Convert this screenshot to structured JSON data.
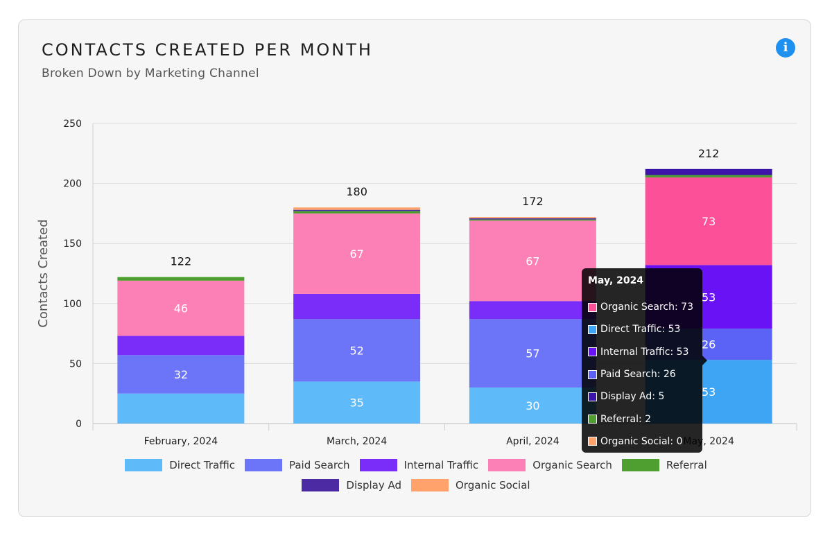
{
  "card": {
    "title": "CONTACTS CREATED PER MONTH",
    "subtitle": "Broken Down by Marketing Channel",
    "info_icon": "info-icon"
  },
  "chart_data": {
    "type": "bar",
    "stacked": true,
    "categories": [
      "February, 2024",
      "March, 2024",
      "April, 2024",
      "May, 2024"
    ],
    "series": [
      {
        "name": "Direct Traffic",
        "color": "#5ebaf9",
        "hover_color": "#3da5f4",
        "values": [
          25,
          35,
          30,
          53
        ]
      },
      {
        "name": "Paid Search",
        "color": "#6c75f7",
        "hover_color": "#5a63f5",
        "values": [
          32,
          52,
          57,
          26
        ]
      },
      {
        "name": "Internal Traffic",
        "color": "#7a2df9",
        "hover_color": "#6a12f6",
        "values": [
          16,
          21,
          15,
          53
        ]
      },
      {
        "name": "Organic Search",
        "color": "#fc80b6",
        "hover_color": "#fc5199",
        "values": [
          46,
          67,
          67,
          73
        ]
      },
      {
        "name": "Referral",
        "color": "#4f9f30",
        "hover_color": "#4f9f30",
        "values": [
          3,
          2,
          1,
          2
        ]
      },
      {
        "name": "Display Ad",
        "color": "#4b2aa3",
        "hover_color": "#3c14a8",
        "values": [
          0,
          1,
          1,
          5
        ]
      },
      {
        "name": "Organic Social",
        "color": "#ffa26b",
        "hover_color": "#ffa26b",
        "values": [
          0,
          2,
          1,
          0
        ]
      }
    ],
    "segment_labels_for": [
      "Direct Traffic",
      "Paid Search",
      "Organic Search",
      "Internal Traffic"
    ],
    "labelled_segments": [
      [
        "",
        "32",
        "",
        "46",
        "",
        "",
        ""
      ],
      [
        "35",
        "52",
        "",
        "67",
        "",
        "",
        ""
      ],
      [
        "30",
        "57",
        "",
        "67",
        "",
        "",
        ""
      ],
      [
        "53",
        "26",
        "53",
        "73",
        "",
        "",
        ""
      ]
    ],
    "totals": [
      "122",
      "180",
      "172",
      "212"
    ],
    "ylabel": "Contacts Created",
    "xlabel": "",
    "ylim": [
      0,
      250
    ],
    "yticks": [
      0,
      50,
      100,
      150,
      200,
      250
    ],
    "grid": true,
    "legend_position": "bottom",
    "hovered_category": 3
  },
  "tooltip": {
    "title": "May, 2024",
    "rows": [
      {
        "text": "Organic Search: 73",
        "color": "#fc5199"
      },
      {
        "text": "Direct Traffic: 53",
        "color": "#3da5f4"
      },
      {
        "text": "Internal Traffic: 53",
        "color": "#6a12f6"
      },
      {
        "text": "Paid Search: 26",
        "color": "#5a63f5"
      },
      {
        "text": "Display Ad: 5",
        "color": "#3c14a8"
      },
      {
        "text": "Referral: 2",
        "color": "#4f9f30"
      },
      {
        "text": "Organic Social: 0",
        "color": "#ffa26b"
      }
    ]
  }
}
